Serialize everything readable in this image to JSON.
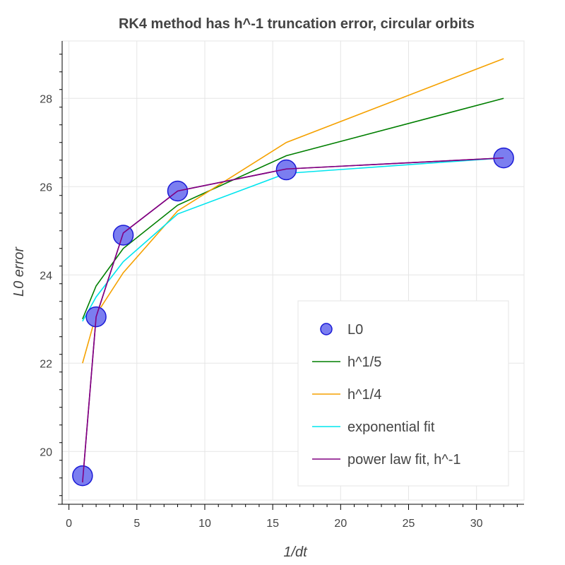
{
  "chart_data": {
    "type": "line",
    "title": "RK4 method has h^-1 truncation error, circular orbits",
    "xlabel": "1/dt",
    "ylabel": "L0 error",
    "xlim": [
      -0.5,
      33.5
    ],
    "ylim": [
      18.9,
      29.3
    ],
    "xticks": [
      0,
      5,
      10,
      15,
      20,
      25,
      30
    ],
    "yticks": [
      20,
      22,
      24,
      26,
      28
    ],
    "grid": true,
    "legend_position": "bottom-right",
    "x": [
      1,
      2,
      4,
      8,
      16,
      32
    ],
    "series": [
      {
        "name": "L0",
        "kind": "scatter",
        "color": "#7b7ef0",
        "edge_color": "#1a1ad6",
        "values": [
          19.45,
          23.05,
          24.9,
          25.9,
          26.38,
          26.65
        ]
      },
      {
        "name": "h^1/5",
        "kind": "line",
        "color": "#007f00",
        "values": [
          23.0,
          23.75,
          24.6,
          25.58,
          26.7,
          28.0
        ]
      },
      {
        "name": "h^1/4",
        "kind": "line",
        "color": "#f5a100",
        "values": [
          22.0,
          23.1,
          24.05,
          25.45,
          27.0,
          28.9
        ]
      },
      {
        "name": "exponential fit",
        "kind": "line",
        "color": "#00e5ee",
        "values": [
          22.95,
          23.5,
          24.3,
          25.38,
          26.3,
          26.65
        ]
      },
      {
        "name": "power law fit, h^-1",
        "kind": "line",
        "color": "#800080",
        "values": [
          19.3,
          23.05,
          24.95,
          25.9,
          26.4,
          26.65
        ]
      }
    ]
  }
}
